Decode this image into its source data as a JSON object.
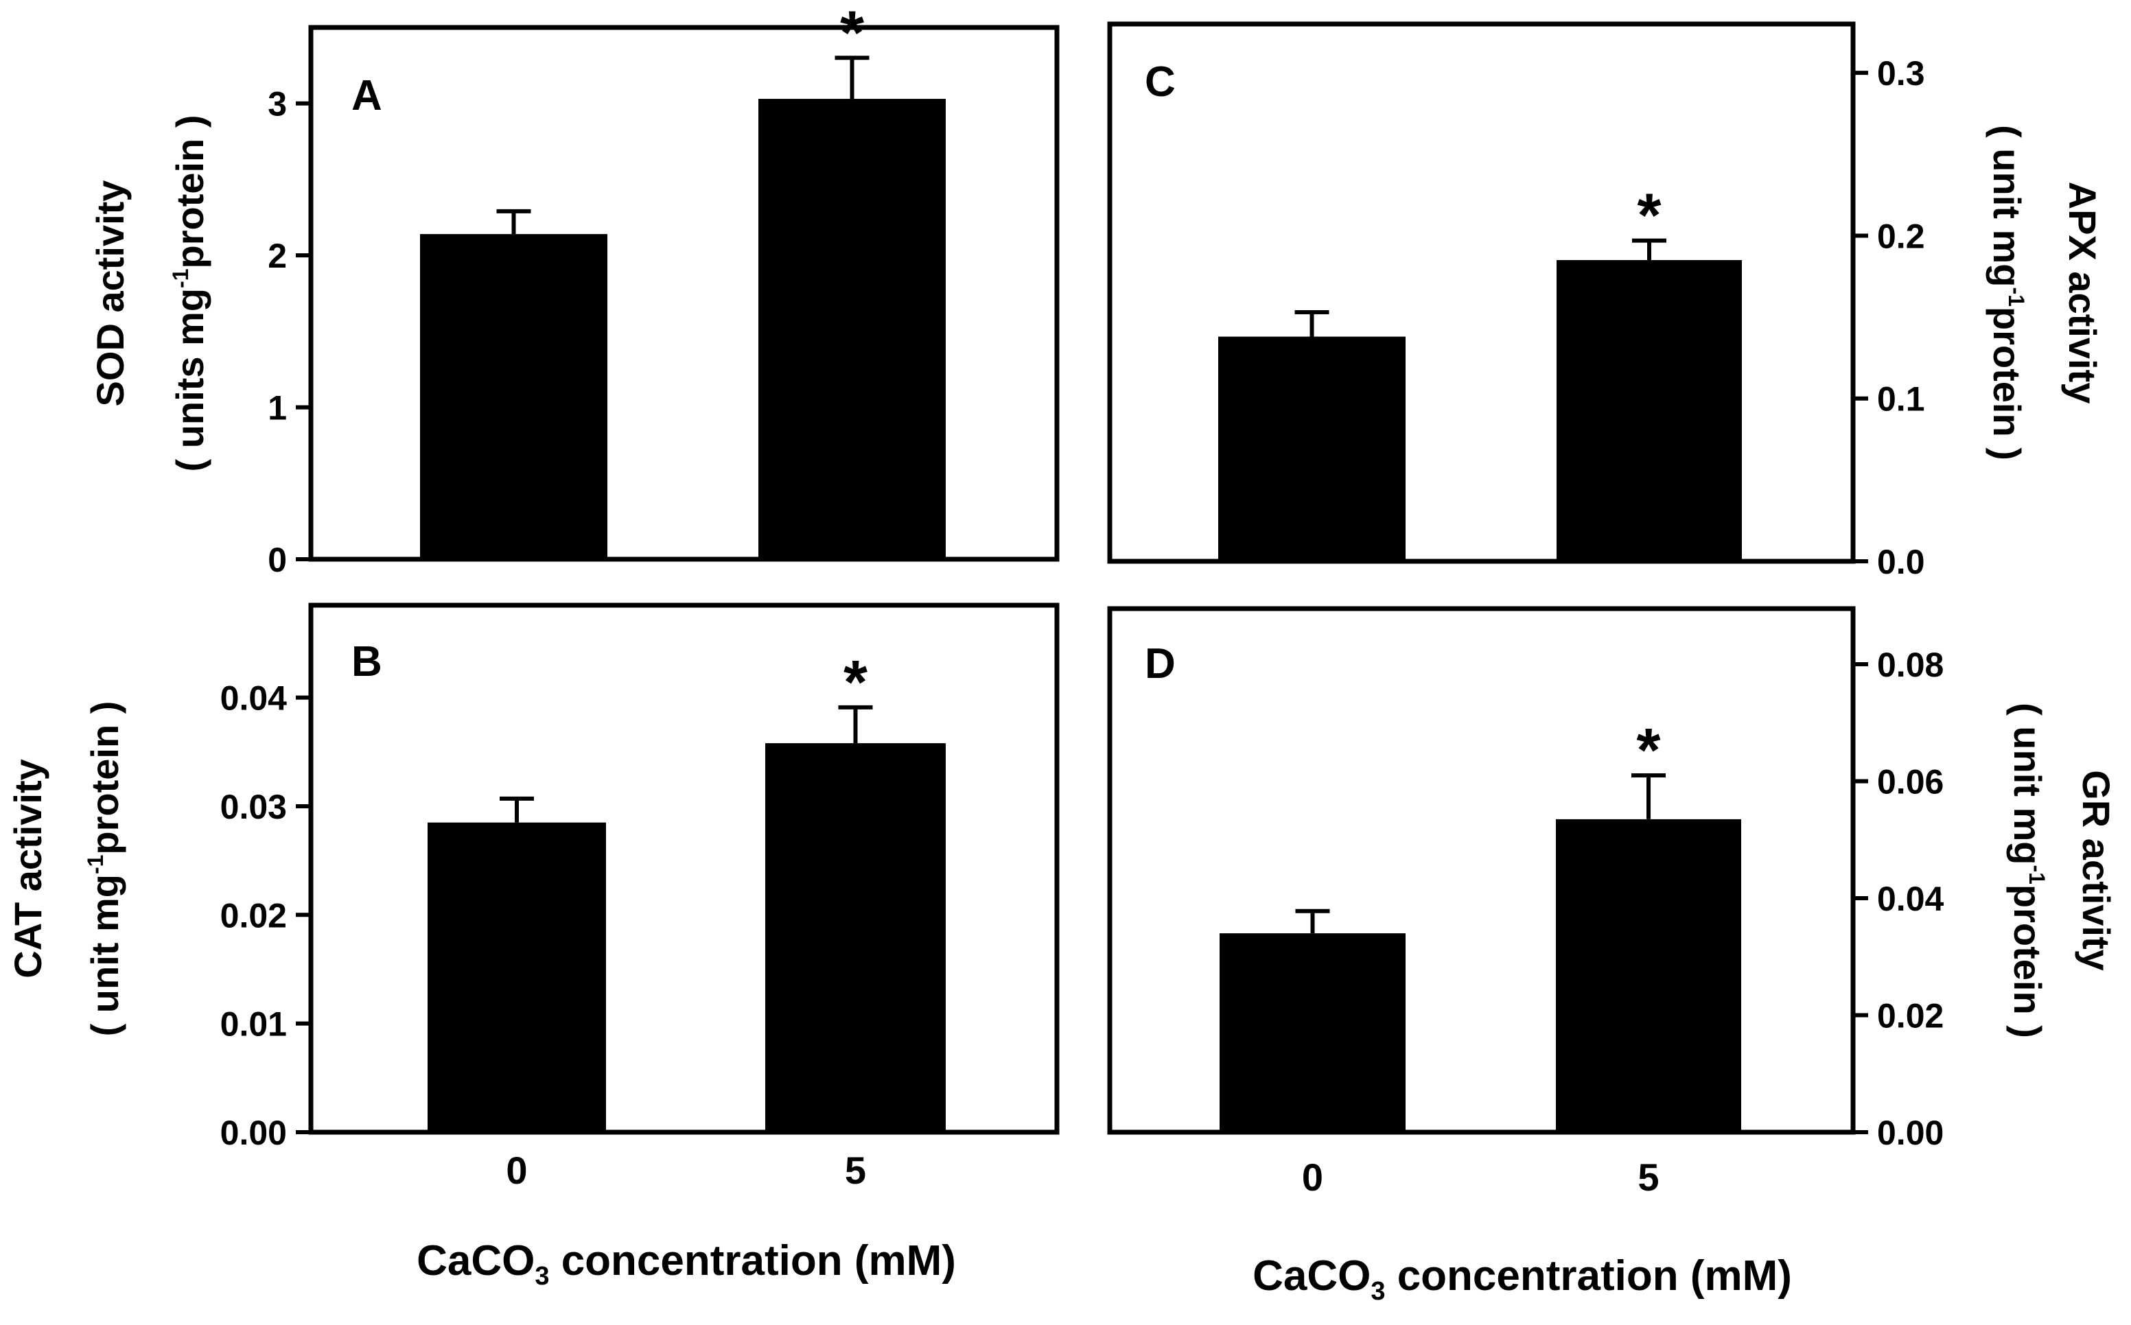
{
  "figure": {
    "x_axis_label": {
      "prefix": "CaCO",
      "subscript": "3",
      "suffix": " concentration (mM)"
    }
  },
  "chart_data": [
    {
      "type": "bar",
      "panel": "A",
      "categories": [
        "0",
        "5"
      ],
      "values": [
        2.14,
        3.03
      ],
      "errors": [
        0.15,
        0.27
      ],
      "significance": [
        "",
        "*"
      ],
      "ylim": [
        0,
        3.5
      ],
      "yticks": [
        "0",
        "1",
        "2",
        "3"
      ],
      "ytick_values": [
        0,
        1,
        2,
        3
      ],
      "y_axis_side": "left",
      "ylabel_line1": "SOD activity",
      "ylabel_line2": {
        "pre": "( units mg",
        "sup": "-1",
        "post": "protein )"
      },
      "show_xticks": false
    },
    {
      "type": "bar",
      "panel": "B",
      "categories": [
        "0",
        "5"
      ],
      "values": [
        0.0285,
        0.0358
      ],
      "errors": [
        0.0022,
        0.0033
      ],
      "significance": [
        "",
        "*"
      ],
      "ylim": [
        0,
        0.0485
      ],
      "yticks": [
        "0.00",
        "0.01",
        "0.02",
        "0.03",
        "0.04"
      ],
      "ytick_values": [
        0,
        0.01,
        0.02,
        0.03,
        0.04
      ],
      "y_axis_side": "left",
      "ylabel_line1": "CAT activity",
      "ylabel_line2": {
        "pre": "( unit mg",
        "sup": "-1",
        "post": "protein )"
      },
      "show_xticks": true
    },
    {
      "type": "bar",
      "panel": "C",
      "categories": [
        "0",
        "5"
      ],
      "values": [
        0.138,
        0.185
      ],
      "errors": [
        0.015,
        0.012
      ],
      "significance": [
        "",
        "*"
      ],
      "ylim": [
        0,
        0.33
      ],
      "yticks": [
        "0.0",
        "0.1",
        "0.2",
        "0.3"
      ],
      "ytick_values": [
        0,
        0.1,
        0.2,
        0.3
      ],
      "y_axis_side": "right",
      "ylabel_line1": "APX activity",
      "ylabel_line2": {
        "pre": "( unit mg",
        "sup": "-1",
        "post": "protein )"
      },
      "show_xticks": false
    },
    {
      "type": "bar",
      "panel": "D",
      "categories": [
        "0",
        "5"
      ],
      "values": [
        0.034,
        0.0535
      ],
      "errors": [
        0.0038,
        0.0075
      ],
      "significance": [
        "",
        "*"
      ],
      "ylim": [
        0,
        0.0895
      ],
      "yticks": [
        "0.00",
        "0.02",
        "0.04",
        "0.06",
        "0.08"
      ],
      "ytick_values": [
        0,
        0.02,
        0.04,
        0.06,
        0.08
      ],
      "y_axis_side": "right",
      "ylabel_line1": "GR activity",
      "ylabel_line2": {
        "pre": "( unit mg",
        "sup": "-1",
        "post": "protein )"
      },
      "show_xticks": true
    }
  ]
}
